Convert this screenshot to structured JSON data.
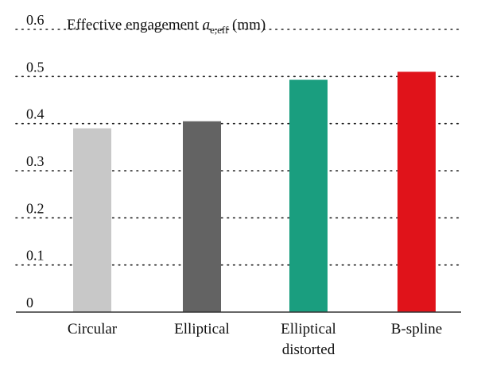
{
  "chart_data": {
    "type": "bar",
    "title": {
      "prefix": "Effective engagement ",
      "symbol": "a",
      "subscript": "e,eff",
      "suffix": " (mm)"
    },
    "categories": [
      [
        "Circular"
      ],
      [
        "Elliptical"
      ],
      [
        "Elliptical",
        "distorted"
      ],
      [
        "B-spline"
      ]
    ],
    "values": [
      0.39,
      0.405,
      0.493,
      0.51
    ],
    "colors": [
      "#c8c8c8",
      "#636363",
      "#1a9e7f",
      "#e0131a"
    ],
    "yticks": [
      "0",
      "0.1",
      "0.2",
      "0.3",
      "0.4",
      "0.5",
      "0.6"
    ],
    "ylim": [
      0,
      0.6
    ],
    "grid": true,
    "legend": "none"
  }
}
